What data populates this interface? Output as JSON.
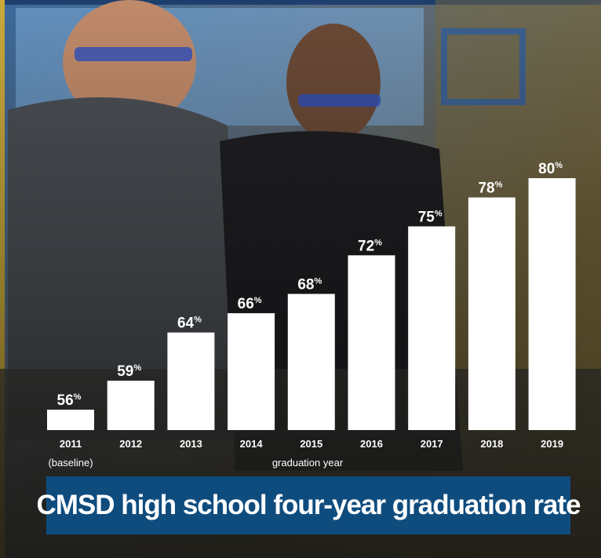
{
  "colors": {
    "bar": "#ffffff",
    "title_bg": "#0f4c7e",
    "frame_blue": "#1e3f6e",
    "frame_gold": "#c9a93a"
  },
  "chart_data": {
    "type": "bar",
    "title": "CMSD high school four-year graduation rate",
    "xlabel": "graduation year",
    "ylabel": "",
    "categories": [
      "2011",
      "2012",
      "2013",
      "2014",
      "2015",
      "2016",
      "2017",
      "2018",
      "2019"
    ],
    "category_notes": [
      "(baseline)",
      "",
      "",
      "",
      "",
      "",
      "",
      "",
      ""
    ],
    "values": [
      56,
      59,
      64,
      66,
      68,
      72,
      75,
      78,
      80
    ],
    "value_suffix": "%",
    "grid": false,
    "legend": "none"
  }
}
